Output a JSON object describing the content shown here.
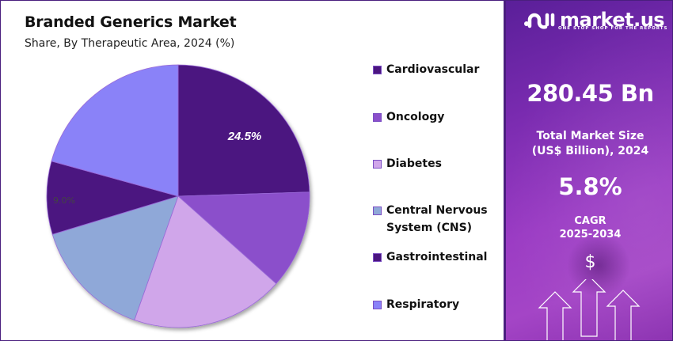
{
  "header": {
    "title": "Branded Generics Market",
    "subtitle": "Share, By Therapeutic Area, 2024 (%)"
  },
  "legend": {
    "items": [
      {
        "label": "Cardiovascular",
        "color": "#4b1580"
      },
      {
        "label": "Oncology",
        "color": "#8b4fcb"
      },
      {
        "label": "Diabetes",
        "color": "#d0a6ea"
      },
      {
        "label": "Central Nervous",
        "label2": "System (CNS)",
        "color": "#8fa8d8"
      },
      {
        "label": "Gastrointestinal",
        "color": "#4b1580"
      },
      {
        "label": "Respiratory",
        "color": "#8a82f8"
      }
    ]
  },
  "panel": {
    "brand": "market.us",
    "tagline": "ONE STOP SHOP FOR THE REPORTS",
    "market_value": "280.45 Bn",
    "market_label_line1": "Total Market Size",
    "market_label_line2": "(US$ Billion), 2024",
    "cagr_value": "5.8%",
    "cagr_label_line1": "CAGR",
    "cagr_label_line2": "2025-2034",
    "dollar_symbol": "$"
  },
  "chart_data": {
    "type": "pie",
    "title": "Branded Generics Market",
    "subtitle": "Share, By Therapeutic Area, 2024 (%)",
    "categories": [
      "Cardiovascular",
      "Oncology",
      "Diabetes",
      "Central Nervous System (CNS)",
      "Gastrointestinal",
      "Respiratory"
    ],
    "values": [
      24.5,
      12.1,
      18.8,
      14.9,
      9.0,
      20.7
    ],
    "colors": [
      "#4b1580",
      "#8b4fcb",
      "#d0a6ea",
      "#8fa8d8",
      "#4b1580",
      "#8a82f8"
    ],
    "data_labels": [
      {
        "category": "Cardiovascular",
        "text": "24.5%"
      },
      {
        "category": "Gastrointestinal",
        "text": "9.0%"
      }
    ],
    "start_angle": "12 o'clock, clockwise",
    "legend_position": "right"
  }
}
